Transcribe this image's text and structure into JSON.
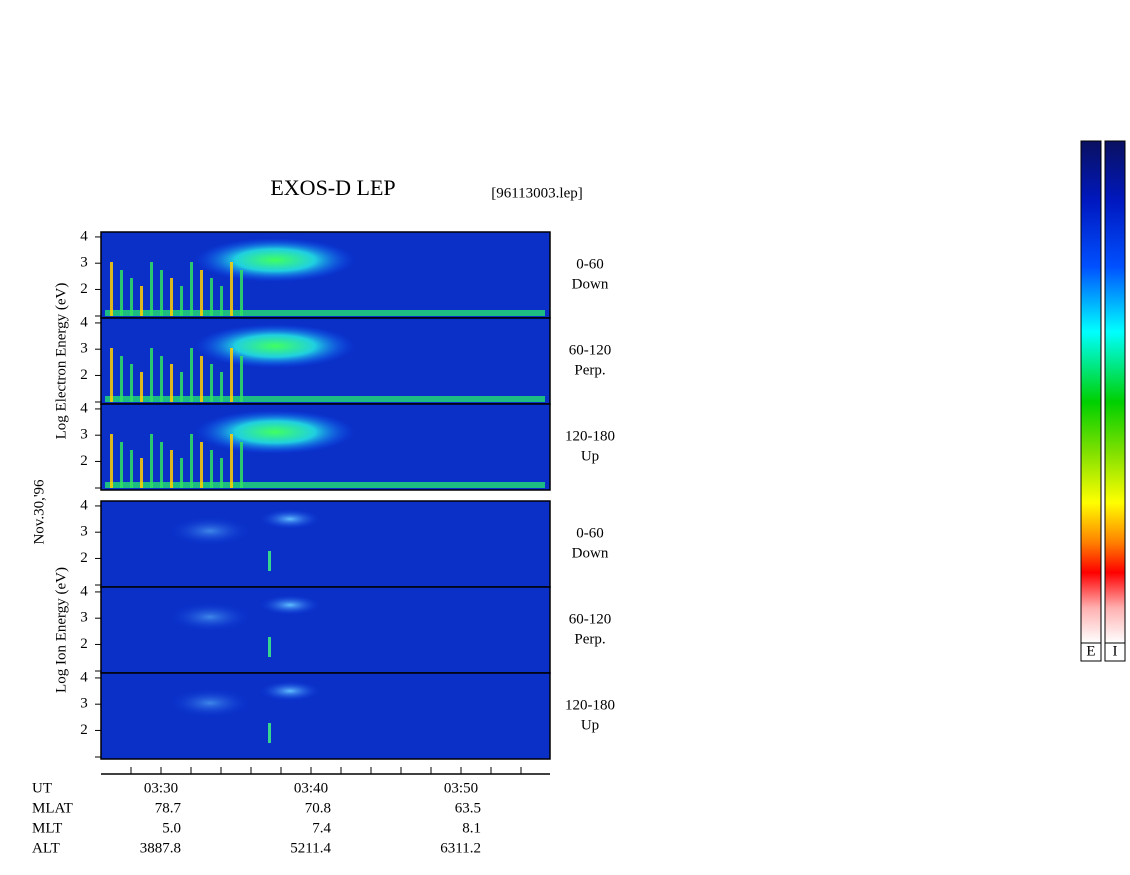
{
  "chart_data": {
    "type": "spectrogram",
    "title": "EXOS-D LEP",
    "file": "[96113003.lep]",
    "date": "Nov.30,'96",
    "ylim": [
      0.95,
      4.15
    ],
    "yticks": [
      2,
      3,
      4
    ],
    "groups": [
      {
        "ylabel": "Log  Electron  Energy  (eV)",
        "panels": [
          [
            "0-60",
            "Down"
          ],
          [
            "60-120",
            "Perp."
          ],
          [
            "120-180",
            "Up"
          ]
        ]
      },
      {
        "ylabel": "Log  Ion  Energy  (eV)",
        "panels": [
          [
            "0-60",
            "Down"
          ],
          [
            "60-120",
            "Perp."
          ],
          [
            "120-180",
            "Up"
          ]
        ]
      }
    ],
    "xtick_labels": [
      "03:30",
      "03:40",
      "03:50"
    ],
    "rows": [
      {
        "name": "UT",
        "values": [
          "03:30",
          "03:40",
          "03:50"
        ]
      },
      {
        "name": "MLAT",
        "values": [
          "78.7",
          "70.8",
          "63.5"
        ]
      },
      {
        "name": "MLT",
        "values": [
          "5.0",
          "7.4",
          "8.1"
        ]
      },
      {
        "name": "ALT",
        "values": [
          "3887.8",
          "5211.4",
          "6311.2"
        ]
      }
    ],
    "colorbars": [
      "E",
      "I"
    ]
  }
}
